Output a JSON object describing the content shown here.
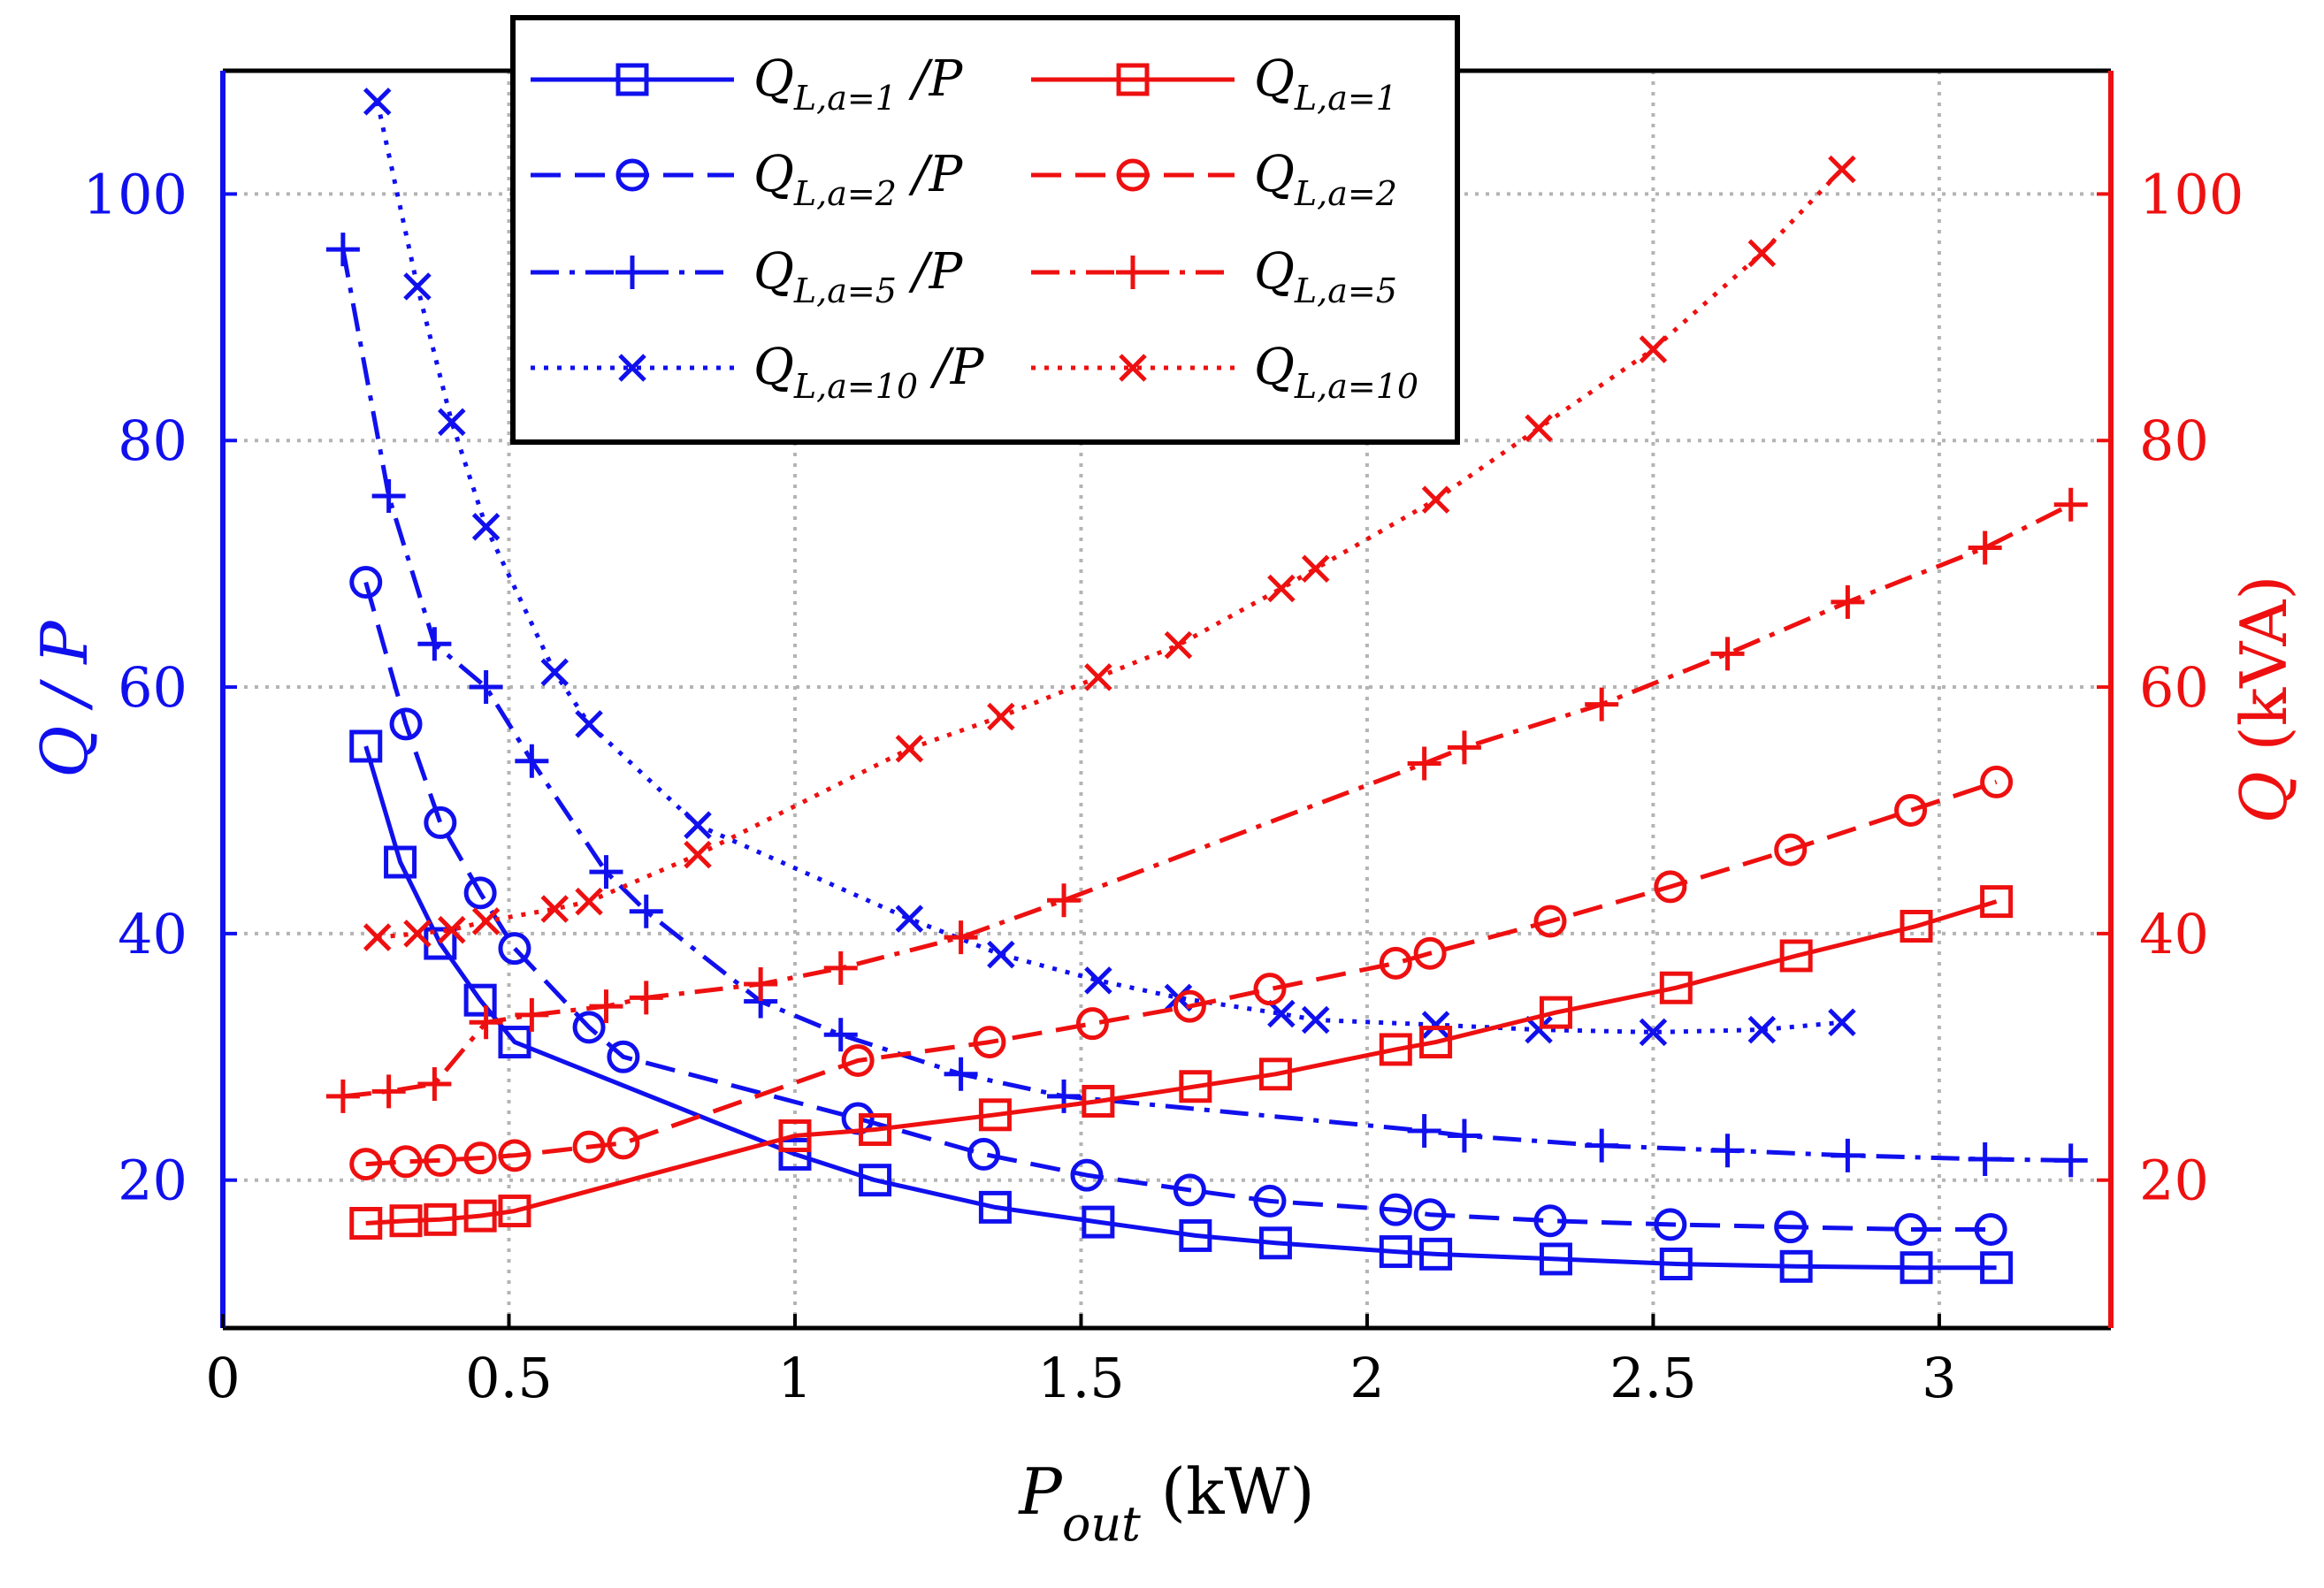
{
  "chart_data": {
    "type": "line",
    "xlabel": {
      "main": "P",
      "sub": "out",
      "rest": " (kW)"
    },
    "ylabel_left": {
      "main": "Q",
      "rest": " / P"
    },
    "ylabel_right": {
      "main": "Q",
      "rest": " (kVA)"
    },
    "xlim": [
      0,
      3.3
    ],
    "ylim_left": [
      8,
      110
    ],
    "ylim_right": [
      8,
      110
    ],
    "xticks": [
      0,
      0.5,
      1,
      1.5,
      2,
      2.5,
      3
    ],
    "xtick_labels": [
      "0",
      "0.5",
      "1",
      "1.5",
      "2",
      "2.5",
      "3"
    ],
    "yticks_left": [
      20,
      40,
      60,
      80,
      100
    ],
    "ytick_labels_left": [
      "20",
      "40",
      "60",
      "80",
      "100"
    ],
    "yticks_right": [
      20,
      40,
      60,
      80,
      100
    ],
    "ytick_labels_right": [
      "20",
      "40",
      "60",
      "80",
      "100"
    ],
    "grid": true,
    "legend_position": "top-center",
    "colors": {
      "blue": "#1010ee",
      "red": "#ee1010",
      "grid": "#b4b4b4",
      "frame": "#000000"
    },
    "series": [
      {
        "name": "Q_L,a=1 /P",
        "legend_main": "Q",
        "legend_sub": "L,a=1",
        "legend_suffix": " /P",
        "axis": "left",
        "color": "#1010ee",
        "dash": "solid",
        "marker": "square",
        "x": [
          0.25,
          0.31,
          0.38,
          0.45,
          0.51,
          1.0,
          1.14,
          1.35,
          1.53,
          1.7,
          1.84,
          2.05,
          2.12,
          2.33,
          2.54,
          2.75,
          2.96,
          3.1
        ],
        "y": [
          55.2,
          45.8,
          39.2,
          34.6,
          31.2,
          22.1,
          20.0,
          17.8,
          16.6,
          15.5,
          14.9,
          14.2,
          14.0,
          13.6,
          13.2,
          13.0,
          12.9,
          12.9
        ]
      },
      {
        "name": "Q_L,a=2 /P",
        "legend_main": "Q",
        "legend_sub": "L,a=2",
        "legend_suffix": " /P",
        "axis": "left",
        "color": "#1010ee",
        "dash": "dashed",
        "marker": "circle",
        "x": [
          0.25,
          0.32,
          0.38,
          0.45,
          0.51,
          0.64,
          0.7,
          1.11,
          1.33,
          1.51,
          1.69,
          1.83,
          2.05,
          2.11,
          2.32,
          2.53,
          2.74,
          2.95,
          3.09
        ],
        "y": [
          68.5,
          57.0,
          49.0,
          43.3,
          38.8,
          32.4,
          30.0,
          25.0,
          22.1,
          20.4,
          19.2,
          18.3,
          17.6,
          17.2,
          16.7,
          16.4,
          16.2,
          16.0,
          16.0
        ]
      },
      {
        "name": "Q_L,a=5 /P",
        "legend_main": "Q",
        "legend_sub": "L,a=5",
        "legend_suffix": " /P",
        "axis": "left",
        "color": "#1010ee",
        "dash": "dashdot",
        "marker": "plus",
        "x": [
          0.21,
          0.29,
          0.37,
          0.46,
          0.54,
          0.67,
          0.74,
          0.94,
          1.08,
          1.29,
          1.47,
          2.1,
          2.17,
          2.41,
          2.63,
          2.84,
          3.08,
          3.23
        ],
        "y": [
          95.5,
          75.5,
          63.5,
          60.0,
          54.0,
          45.0,
          41.8,
          34.5,
          31.8,
          28.6,
          26.8,
          24.0,
          23.6,
          22.8,
          22.4,
          22.0,
          21.7,
          21.6
        ]
      },
      {
        "name": "Q_L,a=10 /P",
        "legend_main": "Q",
        "legend_sub": "L,a=10",
        "legend_suffix": " /P",
        "axis": "left",
        "color": "#1010ee",
        "dash": "dotted",
        "marker": "x",
        "x": [
          0.27,
          0.34,
          0.4,
          0.46,
          0.58,
          0.64,
          0.83,
          1.2,
          1.36,
          1.53,
          1.67,
          1.85,
          1.91,
          2.12,
          2.3,
          2.5,
          2.69,
          2.83
        ],
        "y": [
          107.5,
          92.5,
          81.5,
          73.0,
          61.2,
          57.0,
          48.8,
          41.2,
          38.3,
          36.2,
          34.8,
          33.5,
          33.0,
          32.6,
          32.2,
          32.0,
          32.2,
          32.8
        ]
      },
      {
        "name": "Q_L,a=1",
        "legend_main": "Q",
        "legend_sub": "L,a=1",
        "legend_suffix": "",
        "axis": "right",
        "color": "#ee1010",
        "dash": "solid",
        "marker": "square",
        "x": [
          0.25,
          0.32,
          0.38,
          0.45,
          0.51,
          1.0,
          1.14,
          1.35,
          1.53,
          1.7,
          1.84,
          2.05,
          2.12,
          2.33,
          2.54,
          2.75,
          2.96,
          3.1
        ],
        "y": [
          16.5,
          16.7,
          16.8,
          17.1,
          17.5,
          23.6,
          24.1,
          25.3,
          26.4,
          27.6,
          28.6,
          30.6,
          31.2,
          33.6,
          35.6,
          38.2,
          40.6,
          42.6
        ]
      },
      {
        "name": "Q_L,a=2",
        "legend_main": "Q",
        "legend_sub": "L,a=2",
        "legend_suffix": "",
        "axis": "right",
        "color": "#ee1010",
        "dash": "dashed",
        "marker": "circle",
        "x": [
          0.25,
          0.32,
          0.38,
          0.45,
          0.51,
          0.64,
          0.7,
          1.11,
          1.34,
          1.52,
          1.69,
          1.83,
          2.05,
          2.11,
          2.32,
          2.53,
          2.74,
          2.95,
          3.1
        ],
        "y": [
          21.3,
          21.5,
          21.6,
          21.8,
          22.0,
          22.7,
          23.0,
          29.7,
          31.2,
          32.7,
          34.1,
          35.5,
          37.6,
          38.4,
          41.0,
          43.8,
          46.8,
          50.0,
          52.3
        ]
      },
      {
        "name": "Q_L,a=5",
        "legend_main": "Q",
        "legend_sub": "L,a=5",
        "legend_suffix": "",
        "axis": "right",
        "color": "#ee1010",
        "dash": "dashdot",
        "marker": "plus",
        "x": [
          0.21,
          0.29,
          0.37,
          0.46,
          0.54,
          0.67,
          0.74,
          0.94,
          1.08,
          1.29,
          1.47,
          2.1,
          2.17,
          2.41,
          2.63,
          2.84,
          3.08,
          3.23
        ],
        "y": [
          26.8,
          27.2,
          27.8,
          32.8,
          33.4,
          34.1,
          34.8,
          35.9,
          37.2,
          39.7,
          42.7,
          53.8,
          55.1,
          58.6,
          62.7,
          66.9,
          71.3,
          74.8
        ]
      },
      {
        "name": "Q_L,a=10",
        "legend_main": "Q",
        "legend_sub": "L,a=10",
        "legend_suffix": "",
        "axis": "right",
        "color": "#ee1010",
        "dash": "dotted",
        "marker": "x",
        "x": [
          0.27,
          0.34,
          0.4,
          0.46,
          0.58,
          0.64,
          0.83,
          1.2,
          1.36,
          1.53,
          1.67,
          1.85,
          1.91,
          2.12,
          2.3,
          2.5,
          2.69,
          2.83
        ],
        "y": [
          39.7,
          40.0,
          40.3,
          41.0,
          42.0,
          42.6,
          46.4,
          55.0,
          57.6,
          60.8,
          63.4,
          68.0,
          69.6,
          75.2,
          81.0,
          87.4,
          95.2,
          102.0
        ]
      }
    ]
  }
}
